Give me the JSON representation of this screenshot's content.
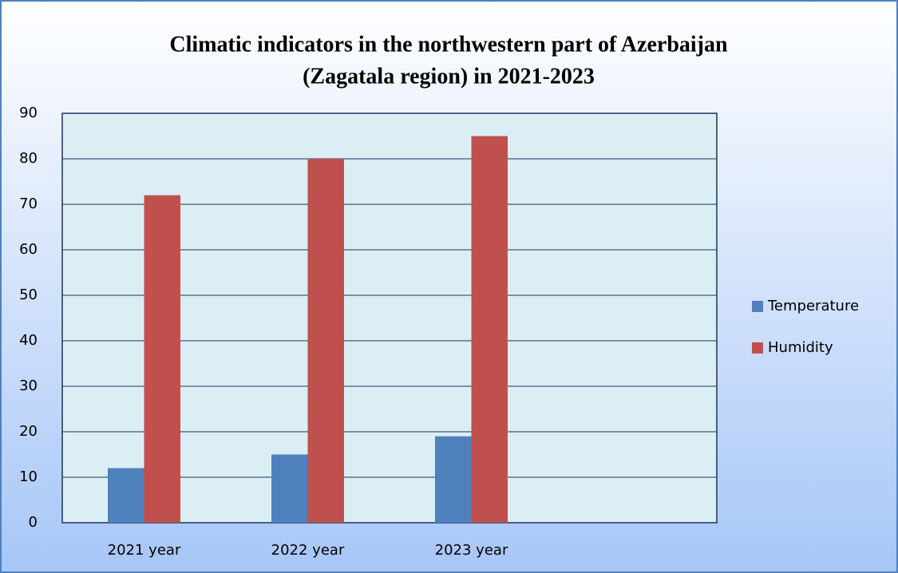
{
  "chart_data": {
    "type": "bar",
    "title": [
      "Climatic indicators in the northwestern part of Azerbaijan",
      "(Zagatala region) in 2021-2023"
    ],
    "categories": [
      "2021 year",
      "2022 year",
      "2023 year",
      null
    ],
    "series": [
      {
        "name": "Temperature",
        "color": "#4f81bd",
        "values": [
          12,
          15,
          19,
          null
        ]
      },
      {
        "name": "Humidity",
        "color": "#c0504d",
        "values": [
          72,
          80,
          85,
          null
        ]
      }
    ],
    "ylim": [
      0,
      90
    ],
    "yticks": [
      0,
      10,
      20,
      30,
      40,
      50,
      60,
      70,
      80,
      90
    ],
    "grid": true,
    "legend": "right"
  }
}
